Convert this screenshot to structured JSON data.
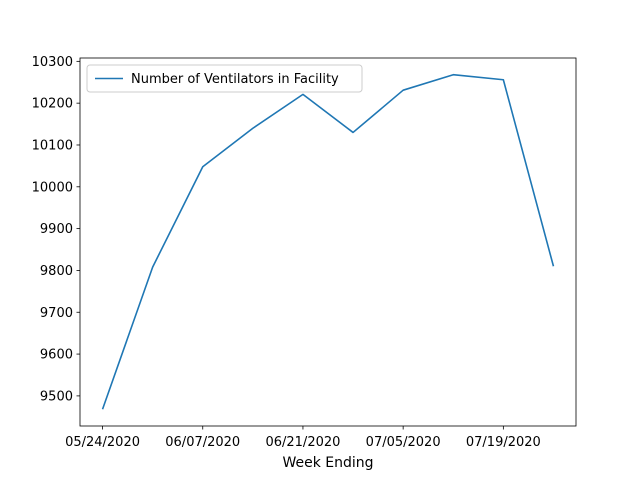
{
  "chart_data": {
    "type": "line",
    "title": "",
    "xlabel": "Week Ending",
    "ylabel": "",
    "x": [
      "05/24/2020",
      "05/31/2020",
      "06/07/2020",
      "06/14/2020",
      "06/21/2020",
      "06/28/2020",
      "07/05/2020",
      "07/12/2020",
      "07/19/2020",
      "07/26/2020"
    ],
    "series": [
      {
        "name": "Number of Ventilators in Facility",
        "color": "#1f77b4",
        "values": [
          9468,
          9808,
          10048,
          10140,
          10221,
          10130,
          10231,
          10268,
          10256,
          9810
        ]
      }
    ],
    "xticks": [
      "05/24/2020",
      "06/07/2020",
      "06/21/2020",
      "07/05/2020",
      "07/19/2020"
    ],
    "yticks": [
      9500,
      9600,
      9700,
      9800,
      9900,
      10000,
      10100,
      10200,
      10300
    ],
    "ylim": [
      9428,
      10308
    ],
    "grid": false,
    "legend_position": "upper-left"
  }
}
